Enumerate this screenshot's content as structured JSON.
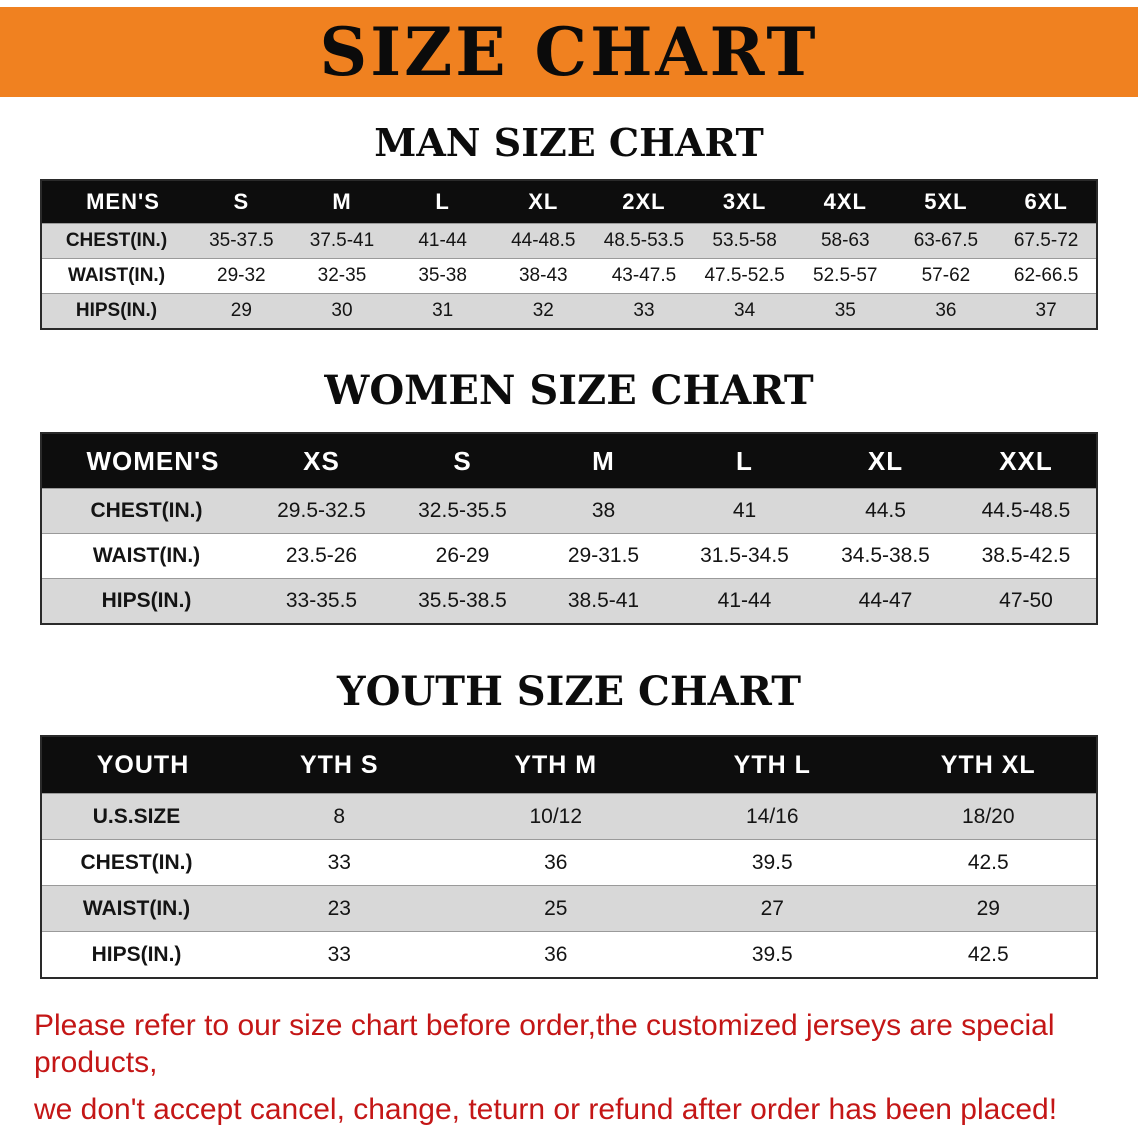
{
  "banner": {
    "title": "SIZE CHART"
  },
  "sections": [
    {
      "id": "men",
      "heading": "MAN SIZE CHART",
      "table": {
        "header_label": "MEN'S",
        "columns": [
          "S",
          "M",
          "L",
          "XL",
          "2XL",
          "3XL",
          "4XL",
          "5XL",
          "6XL"
        ],
        "rows": [
          {
            "label": "CHEST(IN.)",
            "values": [
              "35-37.5",
              "37.5-41",
              "41-44",
              "44-48.5",
              "48.5-53.5",
              "53.5-58",
              "58-63",
              "63-67.5",
              "67.5-72"
            ]
          },
          {
            "label": "WAIST(IN.)",
            "values": [
              "29-32",
              "32-35",
              "35-38",
              "38-43",
              "43-47.5",
              "47.5-52.5",
              "52.5-57",
              "57-62",
              "62-66.5"
            ]
          },
          {
            "label": "HIPS(IN.)",
            "values": [
              "29",
              "30",
              "31",
              "32",
              "33",
              "34",
              "35",
              "36",
              "37"
            ]
          }
        ]
      }
    },
    {
      "id": "women",
      "heading": "WOMEN SIZE CHART",
      "table": {
        "header_label": "WOMEN'S",
        "columns": [
          "XS",
          "S",
          "M",
          "L",
          "XL",
          "XXL"
        ],
        "rows": [
          {
            "label": "CHEST(IN.)",
            "values": [
              "29.5-32.5",
              "32.5-35.5",
              "38",
              "41",
              "44.5",
              "44.5-48.5"
            ]
          },
          {
            "label": "WAIST(IN.)",
            "values": [
              "23.5-26",
              "26-29",
              "29-31.5",
              "31.5-34.5",
              "34.5-38.5",
              "38.5-42.5"
            ]
          },
          {
            "label": "HIPS(IN.)",
            "values": [
              "33-35.5",
              "35.5-38.5",
              "38.5-41",
              "41-44",
              "44-47",
              "47-50"
            ]
          }
        ]
      }
    },
    {
      "id": "youth",
      "heading": "YOUTH SIZE CHART",
      "table": {
        "header_label": "YOUTH",
        "columns": [
          "YTH S",
          "YTH M",
          "YTH L",
          "YTH XL"
        ],
        "rows": [
          {
            "label": "U.S.SIZE",
            "values": [
              "8",
              "10/12",
              "14/16",
              "18/20"
            ]
          },
          {
            "label": "CHEST(IN.)",
            "values": [
              "33",
              "36",
              "39.5",
              "42.5"
            ]
          },
          {
            "label": "WAIST(IN.)",
            "values": [
              "23",
              "25",
              "27",
              "29"
            ]
          },
          {
            "label": "HIPS(IN.)",
            "values": [
              "33",
              "36",
              "39.5",
              "42.5"
            ]
          }
        ]
      }
    }
  ],
  "footer": {
    "line1": "Please refer to our size chart before order,the customized jerseys are special products,",
    "line2": "we don't accept cancel, change, teturn or refund after order has been placed!"
  },
  "colors": {
    "banner_bg": "#f08120",
    "table_header_bg": "#0d0d0d",
    "row_stripe": "#d8d8d8",
    "notice_text": "#c41616"
  }
}
